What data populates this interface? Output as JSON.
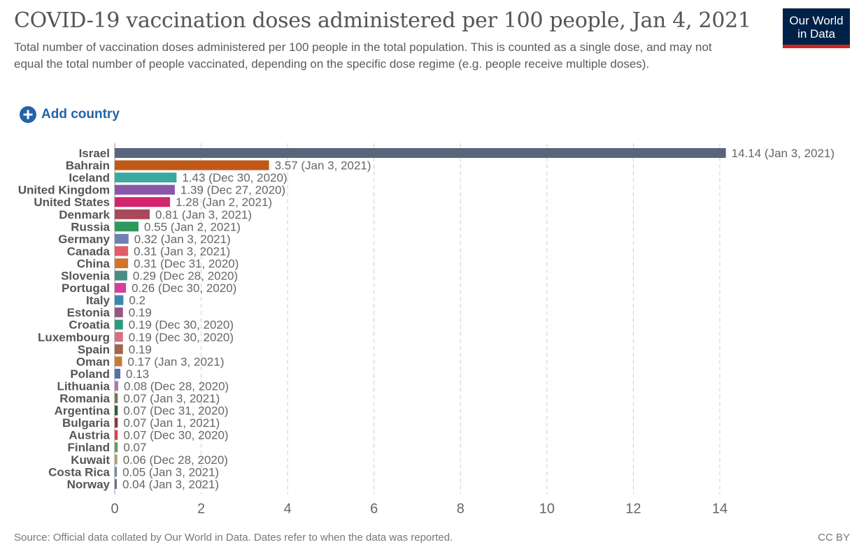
{
  "header": {
    "title": "COVID-19 vaccination doses administered per 100 people, Jan 4, 2021",
    "subtitle": "Total number of vaccination doses administered per 100 people in the total population. This is counted as a single dose, and may not equal the total number of people vaccinated, depending on the specific dose regime (e.g. people receive multiple doses)."
  },
  "logo": {
    "line1": "Our World",
    "line2": "in Data",
    "bg_color": "#002147",
    "accent_color": "#ce261e"
  },
  "controls": {
    "add_country_label": "Add country",
    "add_icon": "plus-circle-icon",
    "accent_color": "#2463a8"
  },
  "chart_data": {
    "type": "bar",
    "orientation": "horizontal",
    "xlim": [
      0,
      14
    ],
    "xticks": [
      0,
      2,
      4,
      6,
      8,
      10,
      12,
      14
    ],
    "grid": "vertical dashed",
    "categories": [
      "Israel",
      "Bahrain",
      "Iceland",
      "United Kingdom",
      "United States",
      "Denmark",
      "Russia",
      "Germany",
      "Canada",
      "China",
      "Slovenia",
      "Portugal",
      "Italy",
      "Estonia",
      "Croatia",
      "Luxembourg",
      "Spain",
      "Oman",
      "Poland",
      "Lithuania",
      "Romania",
      "Argentina",
      "Bulgaria",
      "Austria",
      "Finland",
      "Kuwait",
      "Costa Rica",
      "Norway"
    ],
    "values": [
      14.14,
      3.57,
      1.43,
      1.39,
      1.28,
      0.81,
      0.55,
      0.32,
      0.31,
      0.31,
      0.29,
      0.26,
      0.2,
      0.19,
      0.19,
      0.19,
      0.19,
      0.17,
      0.13,
      0.08,
      0.07,
      0.07,
      0.07,
      0.07,
      0.07,
      0.06,
      0.05,
      0.04
    ],
    "value_labels": [
      "14.14 (Jan 3, 2021)",
      "3.57 (Jan 3, 2021)",
      "1.43 (Dec 30, 2020)",
      "1.39 (Dec 27, 2020)",
      "1.28 (Jan 2, 2021)",
      "0.81 (Jan 3, 2021)",
      "0.55 (Jan 2, 2021)",
      "0.32 (Jan 3, 2021)",
      "0.31 (Jan 3, 2021)",
      "0.31 (Dec 31, 2020)",
      "0.29 (Dec 28, 2020)",
      "0.26 (Dec 30, 2020)",
      "0.2",
      "0.19",
      "0.19 (Dec 30, 2020)",
      "0.19 (Dec 30, 2020)",
      "0.19",
      "0.17 (Jan 3, 2021)",
      "0.13",
      "0.08 (Dec 28, 2020)",
      "0.07 (Jan 3, 2021)",
      "0.07 (Dec 31, 2020)",
      "0.07 (Jan 1, 2021)",
      "0.07 (Dec 30, 2020)",
      "0.07",
      "0.06 (Dec 28, 2020)",
      "0.05 (Jan 3, 2021)",
      "0.04 (Jan 3, 2021)"
    ],
    "colors": [
      "#58657a",
      "#c05917",
      "#38aaa0",
      "#8a57a8",
      "#d2256c",
      "#a9485a",
      "#2d9a5b",
      "#6d81b3",
      "#e05d68",
      "#d0762a",
      "#4c8c86",
      "#d63f9b",
      "#3a88b0",
      "#99567d",
      "#2c9b7d",
      "#d86e7e",
      "#a2644a",
      "#c97a3a",
      "#4d78a3",
      "#b077b7",
      "#7b7355",
      "#2c6136",
      "#8b3a3f",
      "#e0414b",
      "#5f9b6b",
      "#b49d73",
      "#6e8ca4",
      "#6a6f8a"
    ]
  },
  "footer": {
    "source": "Source: Official data collated by Our World in Data. Dates refer to when the data was reported.",
    "license": "CC BY"
  }
}
